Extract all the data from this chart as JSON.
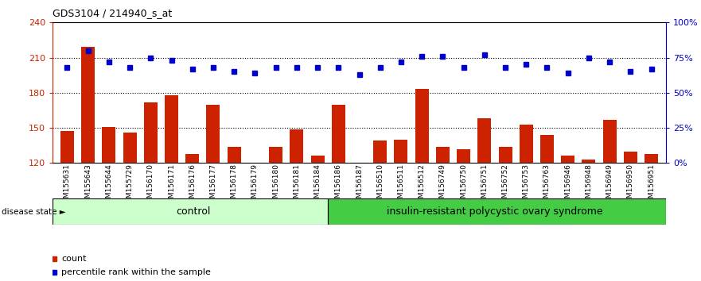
{
  "title": "GDS3104 / 214940_s_at",
  "samples": [
    "GSM155631",
    "GSM155643",
    "GSM155644",
    "GSM155729",
    "GSM156170",
    "GSM156171",
    "GSM156176",
    "GSM156177",
    "GSM156178",
    "GSM156179",
    "GSM156180",
    "GSM156181",
    "GSM156184",
    "GSM156186",
    "GSM156187",
    "GSM156510",
    "GSM156511",
    "GSM156512",
    "GSM156749",
    "GSM156750",
    "GSM156751",
    "GSM156752",
    "GSM156753",
    "GSM156763",
    "GSM156946",
    "GSM156948",
    "GSM156949",
    "GSM156950",
    "GSM156951"
  ],
  "count_values": [
    147,
    219,
    151,
    146,
    172,
    178,
    128,
    170,
    134,
    120,
    134,
    149,
    126,
    170,
    120,
    139,
    140,
    183,
    134,
    132,
    158,
    134,
    153,
    144,
    126,
    123,
    157,
    130,
    128
  ],
  "percentile_values": [
    68,
    80,
    72,
    68,
    75,
    73,
    67,
    68,
    65,
    64,
    68,
    68,
    68,
    68,
    63,
    68,
    72,
    76,
    76,
    68,
    77,
    68,
    70,
    68,
    64,
    75,
    72,
    65,
    67
  ],
  "control_count": 13,
  "disease_count": 16,
  "control_label": "control",
  "disease_label": "insulin-resistant polycystic ovary syndrome",
  "disease_state_label": "disease state",
  "legend_count": "count",
  "legend_percentile": "percentile rank within the sample",
  "ylim_left": [
    120,
    240
  ],
  "ylim_right": [
    0,
    100
  ],
  "yticks_left": [
    120,
    150,
    180,
    210,
    240
  ],
  "yticks_right": [
    0,
    25,
    50,
    75,
    100
  ],
  "bar_color": "#cc2200",
  "dot_color": "#0000cc",
  "control_bg": "#ccffcc",
  "disease_bg": "#44cc44",
  "xtick_bg": "#cccccc",
  "title_color": "#000000",
  "left_axis_color": "#cc2200",
  "right_axis_color": "#0000cc"
}
